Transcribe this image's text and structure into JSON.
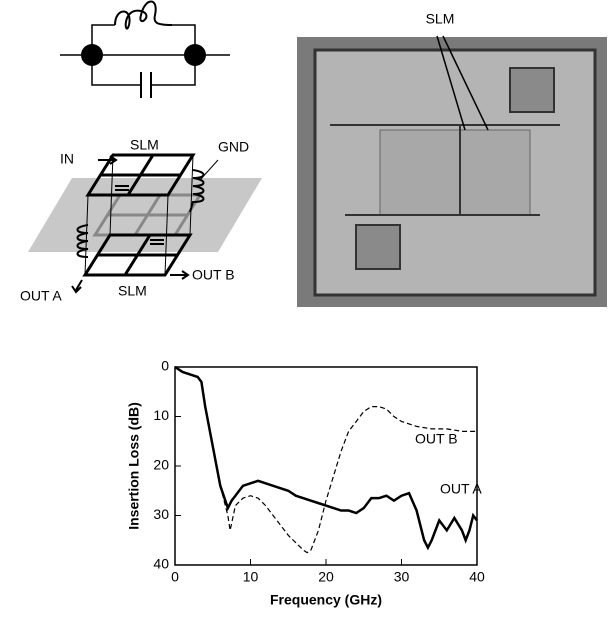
{
  "diagram": {
    "labels": [
      "IN",
      "SLM",
      "GND",
      "SLM",
      "OUT A",
      "OUT B"
    ]
  },
  "photo": {
    "label": "SLM"
  },
  "chart_data": {
    "type": "line",
    "x_label": "Frequency (GHz)",
    "y_label": "Insertion Loss (dB)",
    "xlim": [
      0,
      40
    ],
    "xticks": [
      0,
      10,
      20,
      30,
      40
    ],
    "ylim": [
      0,
      40
    ],
    "yticks": [
      0,
      10,
      20,
      30,
      40
    ],
    "y_inverted": true,
    "annotations": [
      "OUT B",
      "OUT A"
    ],
    "series": [
      {
        "name": "OUT A",
        "color": "#000000",
        "dash": false,
        "x": [
          0,
          1,
          2,
          3,
          3.5,
          4,
          5,
          6,
          7,
          7.5,
          8,
          9,
          10,
          11,
          12,
          13,
          14,
          15,
          16,
          17,
          18,
          19,
          20,
          21,
          22,
          23,
          24,
          25,
          26,
          27,
          28,
          29,
          30,
          31,
          32,
          33,
          33.5,
          34,
          35,
          36,
          37,
          38,
          38.5,
          39,
          39.5,
          40
        ],
        "values": [
          0,
          1,
          1.5,
          2,
          3,
          8,
          16,
          24,
          28.5,
          27,
          26,
          24,
          23.5,
          23,
          23.5,
          24,
          24.5,
          25,
          26,
          26.5,
          27,
          27.5,
          28,
          28.5,
          29,
          29,
          29.5,
          28.5,
          26.5,
          26.5,
          26,
          27,
          26,
          25.5,
          29,
          35,
          36.5,
          35,
          31,
          33,
          30.5,
          33,
          35,
          33,
          30,
          31
        ]
      },
      {
        "name": "OUT B",
        "color": "#000000",
        "dash": true,
        "x": [
          0,
          1,
          2,
          3,
          3.5,
          4,
          5,
          6,
          7,
          7.3,
          8,
          9,
          10,
          11,
          12,
          13,
          14,
          15,
          16,
          17,
          17.5,
          18,
          19,
          20,
          21,
          22,
          23,
          24,
          25,
          26,
          27,
          28,
          29,
          30,
          31,
          32,
          34,
          36,
          38,
          40
        ],
        "values": [
          0,
          1,
          1.5,
          2,
          3,
          8,
          16,
          24,
          30,
          33,
          28,
          26.5,
          26,
          26.5,
          28,
          30,
          32,
          34,
          35.5,
          37,
          37.5,
          37,
          33,
          27,
          22,
          17,
          13,
          11,
          9,
          8,
          8,
          8.5,
          10,
          11,
          11.5,
          12,
          12.5,
          12.5,
          13,
          13
        ]
      }
    ]
  }
}
